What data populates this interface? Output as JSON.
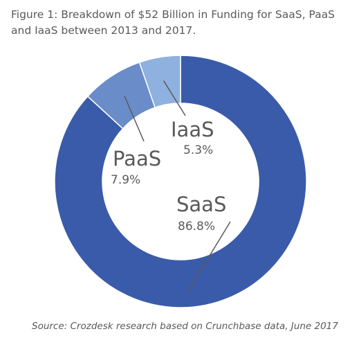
{
  "title": "Figure 1: Breakdown of $52 Billion in Funding for SaaS, PaaS and IaaS between 2013 and 2017.",
  "source": "Source: Crozdesk research based on Crunchbase data, June 2017",
  "chart_data": {
    "type": "pie",
    "variant": "donut",
    "categories": [
      "SaaS",
      "PaaS",
      "IaaS"
    ],
    "values": [
      86.8,
      7.9,
      5.3
    ],
    "value_labels": [
      "86.8%",
      "7.9%",
      "5.3%"
    ],
    "colors": [
      "#3a5ba9",
      "#6a8cc8",
      "#8fb1df"
    ],
    "start_angle_deg": 0,
    "direction": "clockwise"
  }
}
